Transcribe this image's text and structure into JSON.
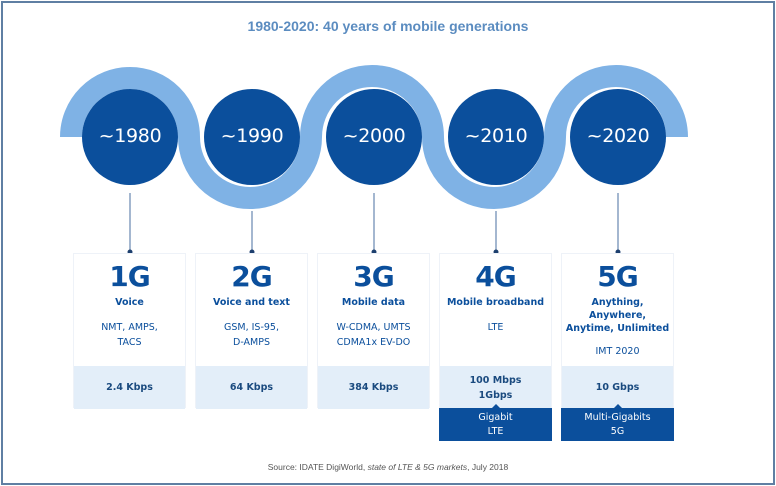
{
  "title": "1980-2020: 40 years of mobile generations",
  "colors": {
    "dark_blue": "#0b4f9c",
    "light_blue": "#7fb2e5",
    "speed_band": "#e3eef9",
    "title": "#5b8cc0",
    "frame": "#5f7fa3"
  },
  "generations": [
    {
      "year": "~1980",
      "gen": "1G",
      "use": [
        "Voice"
      ],
      "tech": [
        "NMT, AMPS,",
        "TACS"
      ],
      "speed": [
        "2.4 Kbps"
      ],
      "extra": null
    },
    {
      "year": "~1990",
      "gen": "2G",
      "use": [
        "Voice and text"
      ],
      "tech": [
        "GSM, IS-95,",
        "D-AMPS"
      ],
      "speed": [
        "64 Kbps"
      ],
      "extra": null
    },
    {
      "year": "~2000",
      "gen": "3G",
      "use": [
        "Mobile data"
      ],
      "tech": [
        "W-CDMA, UMTS",
        "CDMA1x EV-DO"
      ],
      "speed": [
        "384 Kbps"
      ],
      "extra": null
    },
    {
      "year": "~2010",
      "gen": "4G",
      "use": [
        "Mobile broadband"
      ],
      "tech": [
        "LTE"
      ],
      "speed": [
        "100 Mbps",
        "1Gbps"
      ],
      "extra": [
        "Gigabit",
        "LTE"
      ]
    },
    {
      "year": "~2020",
      "gen": "5G",
      "use": [
        "Anything,",
        "Anywhere,",
        "Anytime, Unlimited"
      ],
      "tech": [
        "IMT 2020"
      ],
      "speed": [
        "10 Gbps"
      ],
      "extra": [
        "Multi-Gigabits",
        "5G"
      ]
    }
  ],
  "source": {
    "prefix": "Source: IDATE DigiWorld, ",
    "italic": "state of LTE & 5G markets",
    "suffix": ", July 2018"
  }
}
